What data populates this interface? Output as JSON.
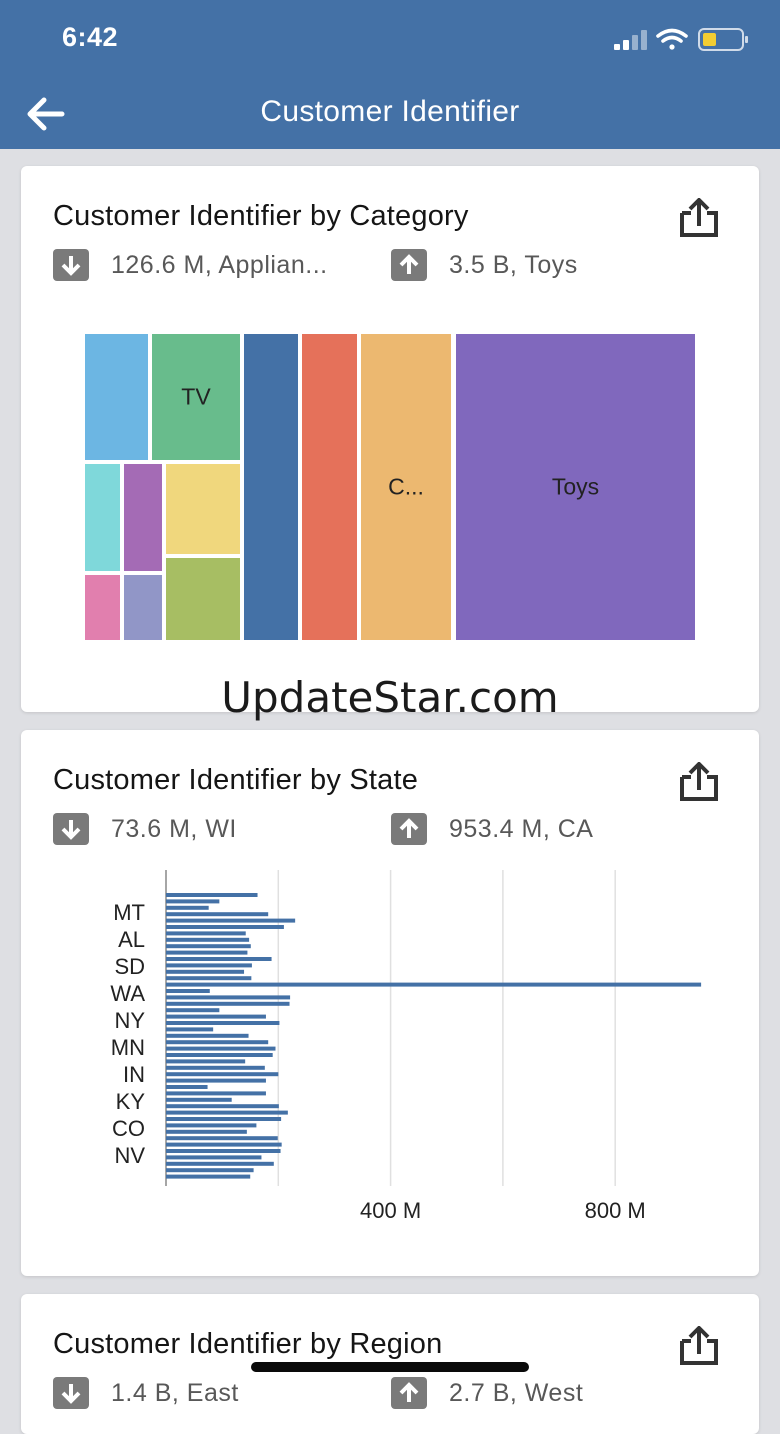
{
  "status_bar": {
    "time": "6:42"
  },
  "header": {
    "title": "Customer Identifier"
  },
  "colors": {
    "header": "#4471a6",
    "bar": "#4471a6",
    "kpi_icon": "#7a7a7a"
  },
  "icons": {
    "back": "arrow-left-icon",
    "share": "share-icon",
    "min": "arrow-down-icon",
    "max": "arrow-up-icon"
  },
  "cards": [
    {
      "title": "Customer Identifier by Category",
      "min_kpi": "126.6 M, Applian...",
      "max_kpi": "3.5 B, Toys"
    },
    {
      "title": "Customer Identifier by State",
      "min_kpi": "73.6 M, WI",
      "max_kpi": "953.4 M, CA"
    },
    {
      "title": "Customer Identifier by Region",
      "min_kpi": "1.4 B, East",
      "max_kpi": "2.7 B, West"
    }
  ],
  "watermark": "UpdateStar.com",
  "chart_data": [
    {
      "type": "treemap",
      "cells": [
        {
          "label": "",
          "color": "#6cb6e3"
        },
        {
          "label": "TV",
          "color": "#68bc8c"
        },
        {
          "label": "",
          "color": "#7fd8da"
        },
        {
          "label": "",
          "color": "#a46bb5"
        },
        {
          "label": "",
          "color": "#f0d77d"
        },
        {
          "label": "",
          "color": "#e17fae"
        },
        {
          "label": "",
          "color": "#9196c7"
        },
        {
          "label": "",
          "color": "#a7be63"
        },
        {
          "label": "",
          "color": "#4471a6"
        },
        {
          "label": "",
          "color": "#e5715a"
        },
        {
          "label": "C...",
          "color": "#ecb870"
        },
        {
          "label": "Toys",
          "color": "#8068bd"
        }
      ]
    },
    {
      "type": "bar",
      "orientation": "horizontal",
      "color": "#4471a6",
      "y_tick_labels": [
        "MT",
        "AL",
        "SD",
        "WA",
        "NY",
        "MN",
        "IN",
        "KY",
        "CO",
        "NV"
      ],
      "x_tick_labels": [
        "400 M",
        "800 M"
      ],
      "xlim": [
        0,
        1000
      ],
      "values_millions": [
        163,
        95,
        76,
        182,
        230,
        210,
        142,
        148,
        151,
        145,
        188,
        153,
        139,
        152,
        953,
        78,
        221,
        220,
        95,
        178,
        202,
        84,
        147,
        182,
        195,
        190,
        141,
        176,
        200,
        178,
        74,
        178,
        117,
        201,
        217,
        205,
        161,
        144,
        199,
        206,
        204,
        170,
        192,
        156,
        150
      ]
    }
  ]
}
